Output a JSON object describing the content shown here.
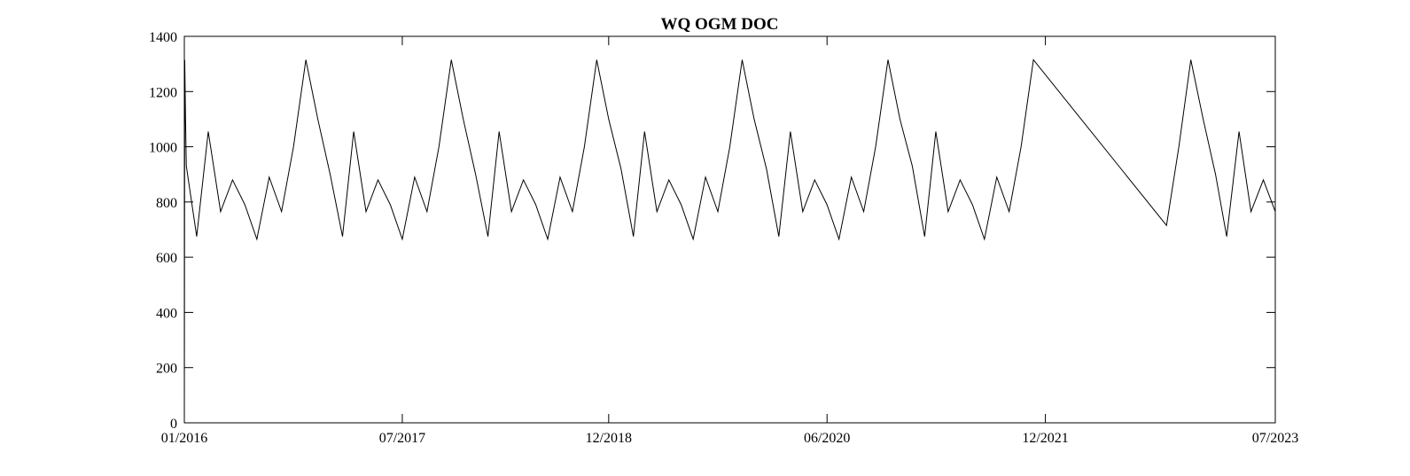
{
  "chart_data": {
    "type": "line",
    "title": "WQ OGM DOC",
    "xlabel": "",
    "ylabel": "",
    "xlim": [
      "2016-01-01",
      "2023-07-01"
    ],
    "ylim": [
      0,
      1400
    ],
    "x_ticks": [
      "01/2016",
      "07/2017",
      "12/2018",
      "06/2020",
      "12/2021",
      "07/2023"
    ],
    "y_ticks": [
      "0",
      "200",
      "400",
      "600",
      "800",
      "1000",
      "1200",
      "1400"
    ],
    "grid": false,
    "legend": "none",
    "colors": {
      "line": "#000000",
      "axes": "#000000",
      "background": "#ffffff"
    },
    "series": [
      {
        "x": [
          "2016-01-01",
          "2016-01-02",
          "2016-01-04",
          "2016-01-06",
          "2016-02-01",
          "2016-03-01",
          "2016-04-01",
          "2016-05-01",
          "2016-06-01",
          "2016-07-01",
          "2016-08-01",
          "2016-09-01",
          "2016-10-01",
          "2016-11-01",
          "2016-12-01",
          "2017-01-01",
          "2017-02-01",
          "2017-03-01",
          "2017-04-01",
          "2017-05-01",
          "2017-06-01",
          "2017-07-01",
          "2017-08-01",
          "2017-09-01",
          "2017-10-01",
          "2017-11-01",
          "2017-12-01",
          "2018-01-01",
          "2018-02-01",
          "2018-03-01",
          "2018-04-01",
          "2018-05-01",
          "2018-06-01",
          "2018-07-01",
          "2018-08-01",
          "2018-09-01",
          "2018-10-01",
          "2018-11-01",
          "2018-12-01",
          "2019-01-01",
          "2019-02-01",
          "2019-03-01",
          "2019-04-01",
          "2019-05-01",
          "2019-06-01",
          "2019-07-01",
          "2019-08-01",
          "2019-09-01",
          "2019-10-01",
          "2019-11-01",
          "2019-12-01",
          "2020-01-01",
          "2020-02-01",
          "2020-03-01",
          "2020-04-01",
          "2020-05-01",
          "2020-06-01",
          "2020-07-01",
          "2020-08-01",
          "2020-09-01",
          "2020-10-01",
          "2020-11-01",
          "2020-12-01",
          "2021-01-01",
          "2021-02-01",
          "2021-03-01",
          "2021-04-01",
          "2021-05-01",
          "2021-06-01",
          "2021-07-01",
          "2021-08-01",
          "2021-09-01",
          "2021-10-01",
          "2021-11-01",
          "2022-10-01",
          "2022-11-01",
          "2022-12-01",
          "2023-01-01",
          "2023-02-01",
          "2023-03-01",
          "2023-04-01",
          "2023-05-01",
          "2023-06-01",
          "2023-07-01"
        ],
        "values": [
          0,
          1315,
          1100,
          930,
          675,
          1055,
          765,
          880,
          790,
          665,
          890,
          765,
          1000,
          1315,
          1100,
          900,
          675,
          1055,
          765,
          880,
          790,
          665,
          890,
          765,
          1000,
          1315,
          1100,
          900,
          675,
          1055,
          765,
          880,
          790,
          665,
          890,
          765,
          1000,
          1315,
          1100,
          920,
          675,
          1055,
          765,
          880,
          790,
          665,
          890,
          765,
          1000,
          1315,
          1100,
          920,
          675,
          1055,
          765,
          880,
          790,
          665,
          890,
          765,
          1000,
          1315,
          1100,
          930,
          675,
          1055,
          765,
          880,
          790,
          665,
          890,
          765,
          1000,
          1315,
          715,
          1000,
          1315,
          1100,
          900,
          675,
          1055,
          765,
          880,
          765
        ]
      }
    ]
  }
}
